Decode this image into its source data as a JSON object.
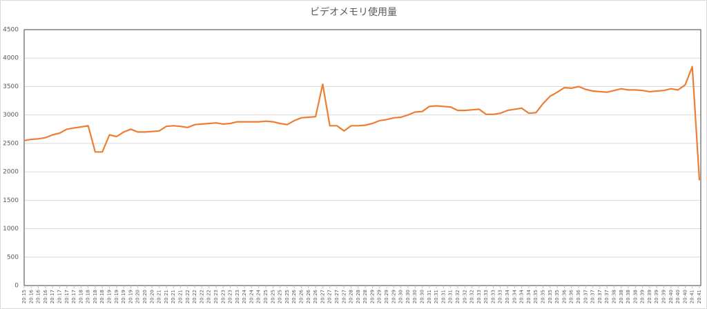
{
  "chart_data": {
    "type": "line",
    "title": "ビデオメモリ使用量",
    "categories": [
      "20:15",
      "20:16",
      "20:16",
      "20:16",
      "20:17",
      "20:17",
      "20:17",
      "20:17",
      "20:18",
      "20:18",
      "20:18",
      "20:18",
      "20:19",
      "20:19",
      "20:19",
      "20:19",
      "20:20",
      "20:20",
      "20:20",
      "20:21",
      "20:21",
      "20:21",
      "20:21",
      "20:22",
      "20:22",
      "20:22",
      "20:22",
      "20:23",
      "20:23",
      "20:23",
      "20:23",
      "20:24",
      "20:24",
      "20:24",
      "20:25",
      "20:25",
      "20:25",
      "20:25",
      "20:26",
      "20:26",
      "20:26",
      "20:26",
      "20:27",
      "20:27",
      "20:27",
      "20:27",
      "20:28",
      "20:28",
      "20:28",
      "20:29",
      "20:29",
      "20:29",
      "20:29",
      "20:30",
      "20:30",
      "20:30",
      "20:30",
      "20:31",
      "20:31",
      "20:31",
      "20:31",
      "20:32",
      "20:32",
      "20:32",
      "20:33",
      "20:33",
      "20:33",
      "20:33",
      "20:34",
      "20:34",
      "20:34",
      "20:34",
      "20:35",
      "20:35",
      "20:35",
      "20:35",
      "20:36",
      "20:36",
      "20:36",
      "20:37",
      "20:37",
      "20:37",
      "20:37",
      "20:38",
      "20:38",
      "20:38",
      "20:38",
      "20:39",
      "20:39",
      "20:39",
      "20:39",
      "20:40",
      "20:40",
      "20:40",
      "20:41",
      "20:41"
    ],
    "series": [
      {
        "name": "ビデオメモリ使用量",
        "color": "#ed7d31",
        "values": [
          2550,
          2570,
          2580,
          2600,
          2650,
          2680,
          2750,
          2770,
          2790,
          2810,
          2350,
          2350,
          2650,
          2620,
          2700,
          2750,
          2700,
          2700,
          2710,
          2720,
          2800,
          2810,
          2800,
          2780,
          2830,
          2840,
          2850,
          2860,
          2840,
          2850,
          2880,
          2880,
          2880,
          2880,
          2890,
          2880,
          2850,
          2830,
          2900,
          2950,
          2960,
          2970,
          3540,
          2810,
          2810,
          2720,
          2810,
          2810,
          2820,
          2850,
          2900,
          2920,
          2950,
          2960,
          3000,
          3050,
          3060,
          3150,
          3160,
          3150,
          3140,
          3080,
          3080,
          3090,
          3100,
          3010,
          3010,
          3030,
          3080,
          3100,
          3120,
          3030,
          3040,
          3200,
          3330,
          3400,
          3480,
          3470,
          3500,
          3450,
          3420,
          3410,
          3400,
          3430,
          3460,
          3440,
          3440,
          3430,
          3410,
          3420,
          3430,
          3460,
          3440,
          3530,
          3850,
          1850
        ]
      }
    ],
    "ylim": [
      0,
      4500
    ],
    "yticks": [
      0,
      500,
      1000,
      1500,
      2000,
      2500,
      3000,
      3500,
      4000,
      4500
    ],
    "grid": true
  }
}
